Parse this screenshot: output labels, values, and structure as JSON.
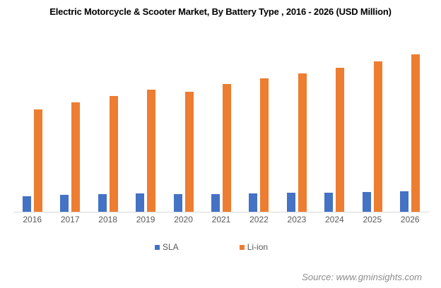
{
  "title": "Electric Motorcycle & Scooter Market, By Battery Type , 2016 - 2026 (USD Million)",
  "chart_data": {
    "type": "bar",
    "title": "Electric Motorcycle & Scooter Market, By Battery Type , 2016 - 2026 (USD Million)",
    "categories": [
      "2016",
      "2017",
      "2018",
      "2019",
      "2020",
      "2021",
      "2022",
      "2023",
      "2024",
      "2025",
      "2026"
    ],
    "series": [
      {
        "name": "SLA",
        "color": "#4472C4",
        "values": [
          10.0,
          10.6,
          11.1,
          11.5,
          11.2,
          11.1,
          11.5,
          12.1,
          12.0,
          12.6,
          13.2
        ]
      },
      {
        "name": "Li-ion",
        "color": "#ED7D31",
        "values": [
          65.0,
          69.6,
          73.8,
          77.9,
          76.3,
          81.4,
          84.7,
          88.1,
          91.5,
          95.5,
          100.0
        ]
      }
    ],
    "units": "USD Million (y-axis unlabeled; values estimated relative to tallest bar = 100)",
    "xlabel": "",
    "ylabel": "",
    "ylim": [
      0,
      106
    ],
    "grid": false,
    "legend_position": "bottom"
  },
  "legend": {
    "items": [
      {
        "label": "SLA",
        "color": "#4472C4"
      },
      {
        "label": "Li-ion",
        "color": "#ED7D31"
      }
    ]
  },
  "source": {
    "text": "Source: www.gminsights.com"
  },
  "colors": {
    "sla_bar": "#4472C4",
    "liion_bar": "#ED7D31",
    "axis_line": "#D9D9D9",
    "axis_label_text": "#595959",
    "legend_text": "#595959",
    "source_text": "#8C8C8C",
    "title_text": "#000000",
    "background": "#FFFFFF"
  }
}
